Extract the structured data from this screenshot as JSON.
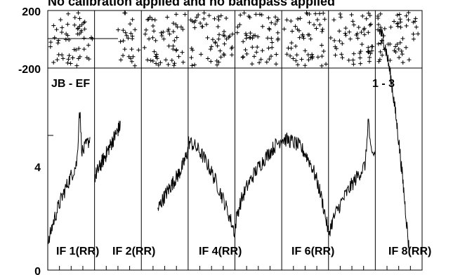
{
  "chart_data": {
    "type": "line",
    "title": "No calibration applied and no bandpass applied",
    "baseline": "JB - EF",
    "page_label": "1 - 3",
    "phase_panel": {
      "ylim": [
        -200,
        200
      ],
      "y_tick_labels": [
        "200",
        "-200"
      ],
      "gap_if": 2
    },
    "amplitude_panel": {
      "ylim": [
        0,
        6
      ],
      "y_tick_labels": [
        "4",
        "0"
      ],
      "y_tick_values": [
        4,
        0
      ]
    },
    "if_labels": [
      "IF 1(RR)",
      "IF 2(RR)",
      "IF 4(RR)",
      "IF 6(RR)",
      "IF 8(RR)"
    ],
    "series": [
      {
        "if": 1,
        "shape": "rise",
        "start": 0.7,
        "peak": 5.3,
        "peak_at": 0.75,
        "end": 3.9
      },
      {
        "if": 2,
        "shape": "flat",
        "start": 2.8,
        "end": 4.3
      },
      {
        "if": 3,
        "shape": "arch",
        "start": 1.8,
        "mid": 3.7,
        "end": 3.6
      },
      {
        "if": 4,
        "shape": "fall",
        "start": 3.8,
        "mid": 3.5,
        "end": 1.1
      },
      {
        "if": 5,
        "shape": "rise",
        "start": 1.0,
        "mid": 3.3,
        "end": 3.9
      },
      {
        "if": 6,
        "shape": "arch",
        "start": 3.9,
        "mid": 3.6,
        "end": 1.1
      },
      {
        "if": 7,
        "shape": "rise",
        "start": 1.0,
        "peak": 4.7,
        "peak_at": 0.85,
        "end": 3.5
      },
      {
        "if": 8,
        "shape": "fall",
        "start": 7.1,
        "mid": 3.5,
        "end": 0.6
      }
    ],
    "grid": false
  }
}
